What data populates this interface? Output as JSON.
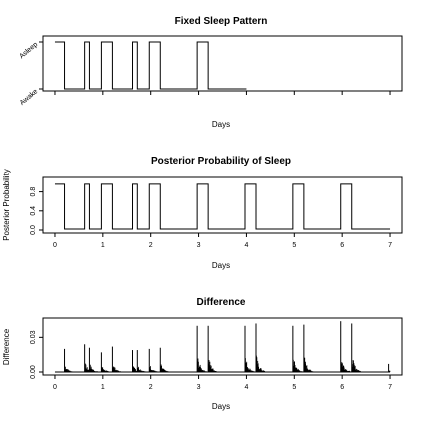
{
  "chart_data": [
    {
      "type": "line",
      "title": "Fixed Sleep Pattern",
      "xlabel": "Days",
      "ylabel": "",
      "xlim": [
        -0.25,
        7.25
      ],
      "ylim": [
        0,
        1
      ],
      "y_tick_labels": [
        {
          "value": 0,
          "label": "Awake"
        },
        {
          "value": 1,
          "label": "Asleep"
        }
      ],
      "x_tick_labels": [],
      "grid": false,
      "steps": [
        {
          "x": 0,
          "y": 1
        },
        {
          "x": 0.2,
          "y": 0
        },
        {
          "x": 0.62,
          "y": 1
        },
        {
          "x": 0.72,
          "y": 0
        },
        {
          "x": 0.97,
          "y": 1
        },
        {
          "x": 1.2,
          "y": 0
        },
        {
          "x": 1.62,
          "y": 1
        },
        {
          "x": 1.72,
          "y": 0
        },
        {
          "x": 1.97,
          "y": 1
        },
        {
          "x": 2.2,
          "y": 0
        },
        {
          "x": 2.97,
          "y": 1
        },
        {
          "x": 3.2,
          "y": 0
        },
        {
          "x": 4.0,
          "y": 0
        }
      ]
    },
    {
      "type": "line",
      "title": "Posterior Probability of Sleep",
      "xlabel": "Days",
      "ylabel": "Posterior Probability",
      "xlim": [
        -0.25,
        7.25
      ],
      "ylim": [
        0,
        1
      ],
      "y_ticks": [
        "0.0",
        "0.4",
        "0.8"
      ],
      "x_ticks": [
        "0",
        "1",
        "2",
        "3",
        "4",
        "5",
        "6",
        "7"
      ],
      "grid": false,
      "steps": [
        {
          "x": 0,
          "y": 0.96
        },
        {
          "x": 0.2,
          "y": 0.02
        },
        {
          "x": 0.62,
          "y": 0.96
        },
        {
          "x": 0.72,
          "y": 0.02
        },
        {
          "x": 0.97,
          "y": 0.96
        },
        {
          "x": 1.2,
          "y": 0.02
        },
        {
          "x": 1.62,
          "y": 0.96
        },
        {
          "x": 1.72,
          "y": 0.02
        },
        {
          "x": 1.97,
          "y": 0.96
        },
        {
          "x": 2.2,
          "y": 0.02
        },
        {
          "x": 2.97,
          "y": 0.96
        },
        {
          "x": 3.2,
          "y": 0.02
        },
        {
          "x": 3.97,
          "y": 0.96
        },
        {
          "x": 4.2,
          "y": 0.02
        },
        {
          "x": 4.97,
          "y": 0.96
        },
        {
          "x": 5.2,
          "y": 0.02
        },
        {
          "x": 5.97,
          "y": 0.96
        },
        {
          "x": 6.2,
          "y": 0.02
        },
        {
          "x": 7.0,
          "y": 0.02
        }
      ]
    },
    {
      "type": "bar",
      "title": "Difference",
      "xlabel": "Days",
      "ylabel": "Difference",
      "xlim": [
        -0.25,
        7.25
      ],
      "ylim": [
        0,
        0.045
      ],
      "y_ticks": [
        "0.00",
        "0.03"
      ],
      "x_ticks": [
        "0",
        "1",
        "2",
        "3",
        "4",
        "5",
        "6",
        "7"
      ],
      "grid": false,
      "spikes": [
        {
          "x": 0.2,
          "y": 0.02
        },
        {
          "x": 0.62,
          "y": 0.024
        },
        {
          "x": 0.72,
          "y": 0.021
        },
        {
          "x": 0.97,
          "y": 0.017
        },
        {
          "x": 1.2,
          "y": 0.022
        },
        {
          "x": 1.62,
          "y": 0.019
        },
        {
          "x": 1.72,
          "y": 0.019
        },
        {
          "x": 1.97,
          "y": 0.02
        },
        {
          "x": 2.2,
          "y": 0.021
        },
        {
          "x": 2.97,
          "y": 0.04
        },
        {
          "x": 3.2,
          "y": 0.04
        },
        {
          "x": 3.97,
          "y": 0.04
        },
        {
          "x": 4.2,
          "y": 0.042
        },
        {
          "x": 4.97,
          "y": 0.04
        },
        {
          "x": 5.2,
          "y": 0.041
        },
        {
          "x": 5.97,
          "y": 0.044
        },
        {
          "x": 6.2,
          "y": 0.042
        },
        {
          "x": 6.97,
          "y": 0.007
        }
      ]
    }
  ]
}
